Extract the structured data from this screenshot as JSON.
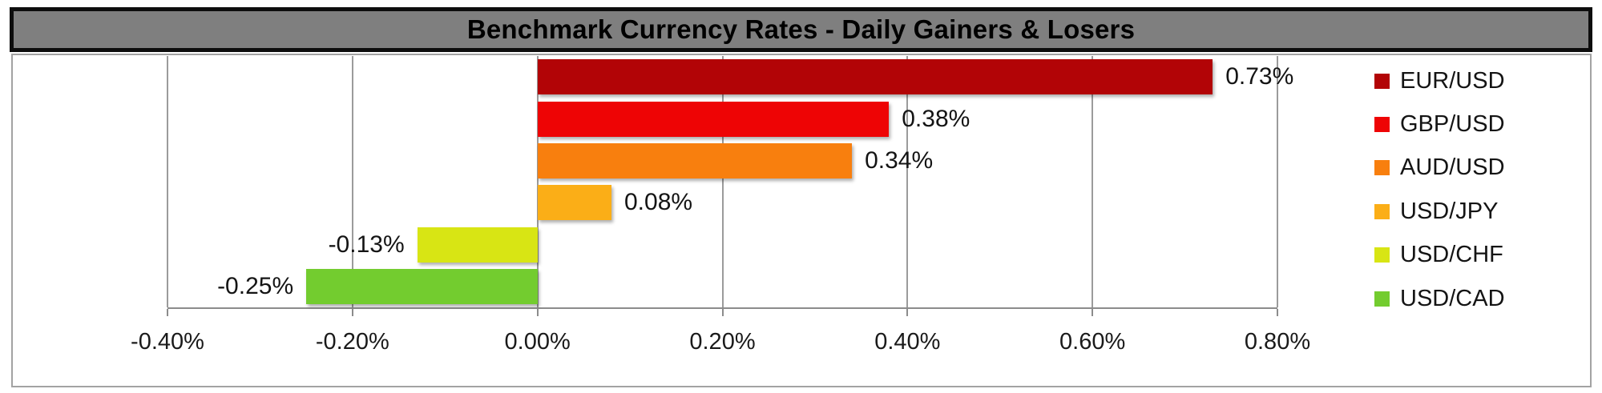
{
  "title": "Benchmark Currency Rates - Daily Gainers & Losers",
  "colors": {
    "title_background": "#7f7f7f",
    "title_border": "#0d0d0d",
    "title_text": "#000000",
    "chart_border": "#a3a3a3",
    "gridline": "#9b9b9b",
    "axis_line": "#8c8c8c",
    "label_text": "#141414"
  },
  "chart_data": {
    "type": "bar",
    "orientation": "horizontal",
    "title": "Benchmark Currency Rates - Daily Gainers & Losers",
    "categories": [
      "EUR/USD",
      "GBP/USD",
      "AUD/USD",
      "USD/JPY",
      "USD/CHF",
      "USD/CAD"
    ],
    "values": [
      0.73,
      0.38,
      0.34,
      0.08,
      -0.13,
      -0.25
    ],
    "value_labels": [
      "0.73%",
      "0.38%",
      "0.34%",
      "0.08%",
      "-0.13%",
      "-0.25%"
    ],
    "bar_colors": [
      "#b20406",
      "#ee0405",
      "#f87f0e",
      "#fbae17",
      "#d8e514",
      "#73cc2f"
    ],
    "xlabel": "",
    "ylabel": "",
    "x_axis": {
      "min": -0.4,
      "max": 0.8,
      "tick_step": 0.2,
      "tick_labels": [
        "-0.40%",
        "-0.20%",
        "0.00%",
        "0.20%",
        "0.40%",
        "0.60%",
        "0.80%"
      ]
    },
    "grid": true,
    "legend": {
      "position": "right",
      "entries": [
        "EUR/USD",
        "GBP/USD",
        "AUD/USD",
        "USD/JPY",
        "USD/CHF",
        "USD/CAD"
      ]
    }
  }
}
